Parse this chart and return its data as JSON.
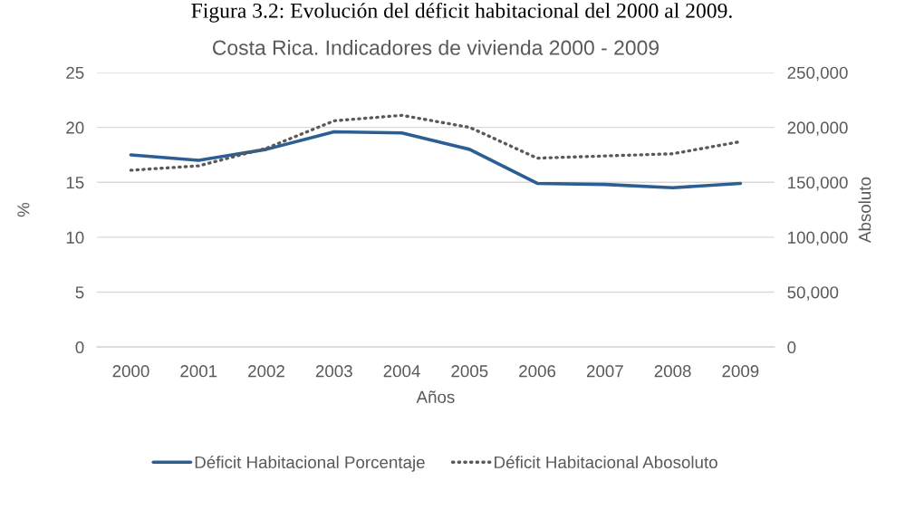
{
  "chart_data": {
    "type": "line",
    "title": "Costa Rica. Indicadores de vivienda 2000 - 2009",
    "xlabel": "Años",
    "ylabel": "%",
    "y2label": "Absoluto",
    "annotations": [
      "Figura 3.2: Evolución del déficit habitacional del 2000 al 2009."
    ],
    "categories": [
      "2000",
      "2001",
      "2002",
      "2003",
      "2004",
      "2005",
      "2006",
      "2007",
      "2008",
      "2009"
    ],
    "series": [
      {
        "name": "Déficit Habitacional Porcentaje",
        "color": "#2b5f93",
        "line_style": "solid",
        "values": [
          17.5,
          17.0,
          18.0,
          19.6,
          19.5,
          18.0,
          14.9,
          14.8,
          14.5,
          14.9
        ]
      },
      {
        "name": "Déficit Habitacional Abosoluto",
        "color": "#595959",
        "line_style": "dotted",
        "axis": "y2",
        "values": [
          161000,
          165000,
          181000,
          206000,
          211000,
          200000,
          172000,
          174000,
          176000,
          187000
        ]
      }
    ],
    "ylim": [
      0,
      25
    ],
    "yticks": [
      0,
      5,
      10,
      15,
      20,
      25
    ],
    "y2lim": [
      0,
      250000
    ],
    "y2ticks": [
      0,
      {
        "value": 50000,
        "label": "50,000"
      },
      {
        "value": 100000,
        "label": "100,000"
      },
      {
        "value": 150000,
        "label": "150,000"
      },
      {
        "value": 200000,
        "label": "200,000"
      },
      {
        "value": 250000,
        "label": "250,000"
      }
    ],
    "grid": "y",
    "legend": "bottom"
  }
}
